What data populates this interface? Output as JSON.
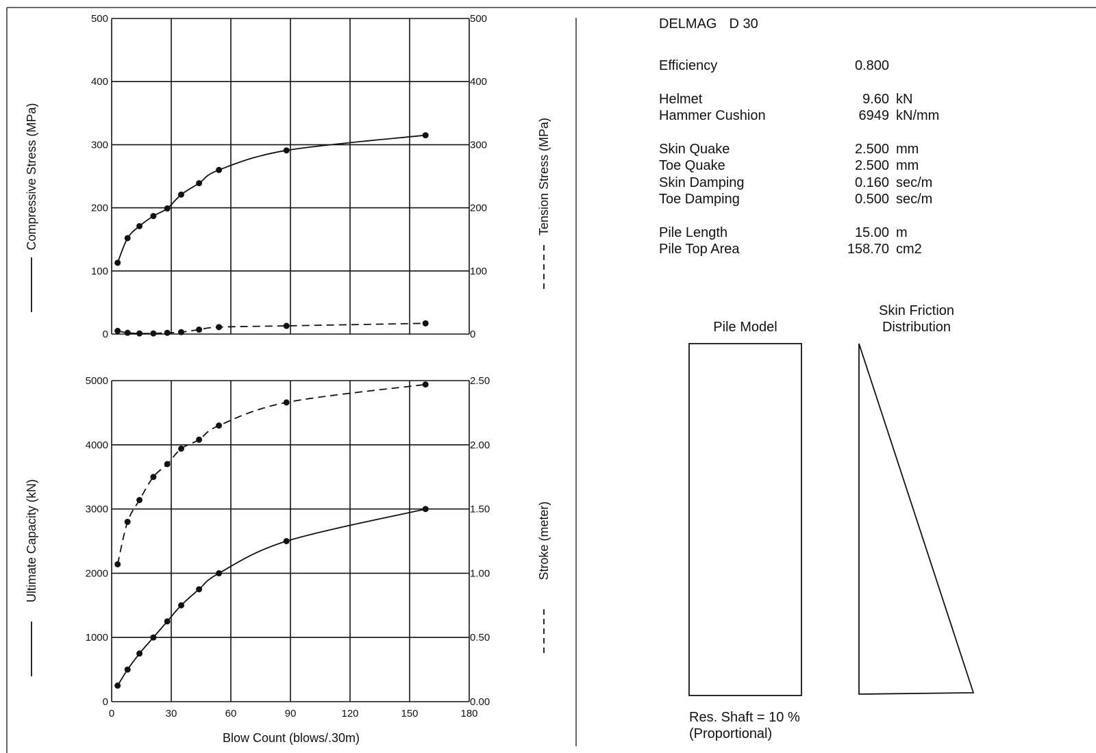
{
  "chart_data": [
    {
      "type": "line",
      "x": [
        3,
        8,
        14,
        21,
        28,
        35,
        44,
        54,
        88,
        158
      ],
      "xlim": [
        0,
        180
      ],
      "ylabel": "Compressive Stress (MPa)",
      "ylabel_right": "Tension Stress (MPa)",
      "ylim": [
        0,
        500
      ],
      "ylim_right": [
        0,
        500
      ],
      "yticks": [
        0,
        100,
        200,
        300,
        400,
        500
      ],
      "yticks_right": [
        0,
        100,
        200,
        300,
        400,
        500
      ],
      "grid": true,
      "series": [
        {
          "values": [
            113,
            152,
            171,
            187,
            199,
            221,
            239,
            260,
            291,
            315
          ],
          "axis": "left",
          "style": "solid"
        },
        {
          "values": [
            5,
            2,
            1,
            1,
            2,
            3,
            7,
            11,
            13,
            17
          ],
          "axis": "right",
          "style": "dashed"
        }
      ]
    },
    {
      "type": "line",
      "x": [
        3,
        8,
        14,
        21,
        28,
        35,
        44,
        54,
        88,
        158
      ],
      "xlim": [
        0,
        180
      ],
      "xticks": [
        0,
        30,
        60,
        90,
        120,
        150,
        180
      ],
      "xlabel": "Blow Count (blows/.30m)",
      "ylabel": "Ultimate Capacity (kN)",
      "ylabel_right": "Stroke (meter)",
      "ylim": [
        0,
        5000
      ],
      "ylim_right": [
        0,
        2.5
      ],
      "yticks": [
        0,
        1000,
        2000,
        3000,
        4000,
        5000
      ],
      "yticks_right": [
        "0.00",
        "0.50",
        "1.00",
        "1.50",
        "2.00",
        "2.50"
      ],
      "grid": true,
      "series": [
        {
          "values": [
            250,
            500,
            750,
            1000,
            1250,
            1500,
            1750,
            2000,
            2500,
            3000
          ],
          "axis": "left",
          "style": "solid"
        },
        {
          "values": [
            1.07,
            1.4,
            1.57,
            1.75,
            1.85,
            1.97,
            2.04,
            2.15,
            2.33,
            2.47
          ],
          "axis": "right",
          "style": "dashed"
        }
      ]
    }
  ],
  "hammer": {
    "make": "DELMAG",
    "model": "D 30"
  },
  "properties": {
    "efficiency": {
      "label": "Efficiency",
      "value": "0.800",
      "unit": ""
    },
    "helmet": {
      "label": "Helmet",
      "value": "9.60",
      "unit": "kN"
    },
    "hammer_cushion": {
      "label": "Hammer Cushion",
      "value": "6949",
      "unit": "kN/mm"
    },
    "skin_quake": {
      "label": "Skin Quake",
      "value": "2.500",
      "unit": "mm"
    },
    "toe_quake": {
      "label": "Toe Quake",
      "value": "2.500",
      "unit": "mm"
    },
    "skin_damping": {
      "label": "Skin Damping",
      "value": "0.160",
      "unit": "sec/m"
    },
    "toe_damping": {
      "label": "Toe Damping",
      "value": "0.500",
      "unit": "sec/m"
    },
    "pile_length": {
      "label": "Pile Length",
      "value": "15.00",
      "unit": "m"
    },
    "pile_top_area": {
      "label": "Pile Top Area",
      "value": "158.70",
      "unit": "cm2"
    }
  },
  "pile_model": {
    "label": "Pile Model"
  },
  "skin_friction": {
    "label_line1": "Skin Friction",
    "label_line2": "Distribution"
  },
  "residual": {
    "line1": "Res. Shaft = 10 %",
    "line2": "(Proportional)"
  }
}
